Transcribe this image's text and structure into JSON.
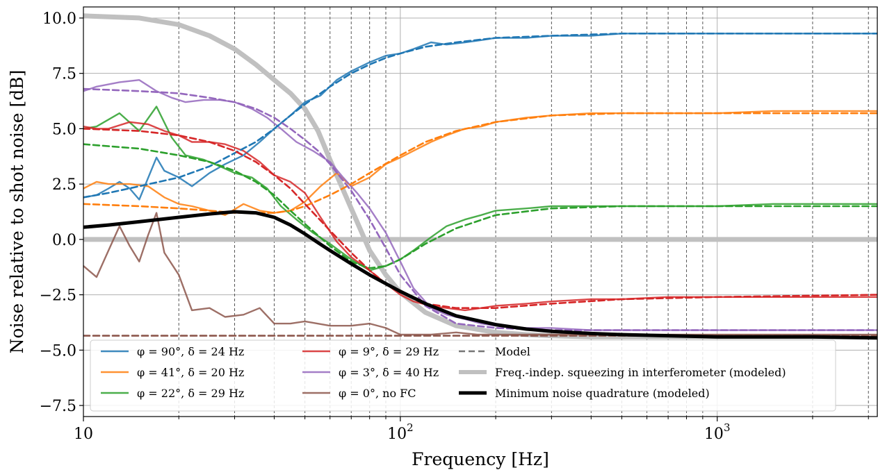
{
  "chart_data": {
    "type": "line",
    "xscale": "log",
    "xlabel": "Frequency [Hz]",
    "ylabel": "Noise relative to shot noise [dB]",
    "xlim": [
      10,
      3200
    ],
    "ylim": [
      -8.0,
      10.5
    ],
    "grid": true,
    "legend_position": "bottom-left",
    "x_ticks": [
      {
        "value": 10,
        "label": "10"
      },
      {
        "value": 100,
        "label": "10",
        "exp": "2"
      },
      {
        "value": 1000,
        "label": "10",
        "exp": "3"
      }
    ],
    "y_ticks": [
      {
        "value": 10.0,
        "label": "10.0"
      },
      {
        "value": 7.5,
        "label": "7.5"
      },
      {
        "value": 5.0,
        "label": "5.0"
      },
      {
        "value": 2.5,
        "label": "2.5"
      },
      {
        "value": 0.0,
        "label": "0.0"
      },
      {
        "value": -2.5,
        "label": "−2.5"
      },
      {
        "value": -5.0,
        "label": "−5.0"
      },
      {
        "value": -7.5,
        "label": "−7.5"
      }
    ],
    "vertical_dashed_lines_hz": [
      20,
      30,
      40,
      50,
      60,
      70,
      80,
      90,
      200,
      300,
      400,
      500,
      600,
      700,
      800,
      900,
      2000,
      3000
    ],
    "series": [
      {
        "name": "φ = 90°, δ = 24 Hz",
        "color": "#1f77b4",
        "style": "measured",
        "x": [
          10,
          11,
          12,
          13,
          14,
          15,
          17,
          18,
          20,
          22,
          25,
          28,
          32,
          36,
          40,
          45,
          50,
          56,
          63,
          70,
          80,
          90,
          100,
          110,
          125,
          140,
          160,
          180,
          200,
          250,
          300,
          400,
          500,
          700,
          1000,
          1500,
          2000,
          3000,
          3200
        ],
        "y": [
          1.9,
          2.0,
          2.3,
          2.6,
          2.3,
          1.8,
          3.7,
          3.1,
          2.8,
          2.4,
          3.0,
          3.4,
          3.8,
          4.4,
          5.0,
          5.6,
          6.2,
          6.5,
          7.2,
          7.6,
          8.0,
          8.3,
          8.4,
          8.6,
          8.9,
          8.8,
          8.9,
          9.0,
          9.1,
          9.1,
          9.2,
          9.2,
          9.3,
          9.3,
          9.3,
          9.3,
          9.3,
          9.3,
          9.3
        ]
      },
      {
        "name": "φ = 41°, δ = 20 Hz",
        "color": "#ff7f0e",
        "style": "measured",
        "x": [
          10,
          11,
          12,
          14,
          16,
          18,
          20,
          22,
          25,
          28,
          32,
          36,
          40,
          45,
          50,
          56,
          63,
          70,
          80,
          90,
          100,
          110,
          125,
          140,
          160,
          180,
          200,
          250,
          300,
          400,
          500,
          700,
          1000,
          1500,
          2000,
          3000,
          3200
        ],
        "y": [
          2.3,
          2.6,
          2.5,
          2.5,
          2.4,
          1.9,
          1.6,
          1.5,
          1.3,
          1.1,
          1.6,
          1.3,
          1.2,
          1.3,
          1.7,
          2.4,
          3.0,
          2.4,
          2.8,
          3.4,
          3.7,
          4.0,
          4.4,
          4.7,
          5.0,
          5.1,
          5.3,
          5.5,
          5.6,
          5.7,
          5.7,
          5.7,
          5.7,
          5.8,
          5.8,
          5.8,
          5.8
        ]
      },
      {
        "name": "φ = 22°, δ = 29 Hz",
        "color": "#2ca02c",
        "style": "measured",
        "x": [
          10,
          11,
          13,
          15,
          17,
          19,
          21,
          24,
          27,
          30,
          34,
          38,
          42,
          47,
          53,
          60,
          70,
          80,
          90,
          100,
          110,
          125,
          140,
          160,
          180,
          200,
          250,
          300,
          400,
          500,
          700,
          1000,
          1500,
          2000,
          3000,
          3200
        ],
        "y": [
          5.0,
          5.1,
          5.7,
          4.9,
          6.0,
          4.6,
          3.8,
          3.6,
          3.3,
          3.0,
          2.8,
          2.3,
          1.5,
          0.9,
          0.3,
          -0.2,
          -0.9,
          -1.4,
          -1.2,
          -0.9,
          -0.5,
          0.1,
          0.6,
          0.9,
          1.1,
          1.3,
          1.4,
          1.5,
          1.5,
          1.5,
          1.5,
          1.5,
          1.6,
          1.6,
          1.6,
          1.6
        ]
      },
      {
        "name": "φ = 9°, δ = 29 Hz",
        "color": "#d62728",
        "style": "measured",
        "x": [
          10,
          11,
          12,
          14,
          16,
          18,
          20,
          22,
          25,
          28,
          32,
          36,
          40,
          45,
          50,
          56,
          63,
          70,
          80,
          90,
          100,
          110,
          125,
          140,
          160,
          180,
          200,
          250,
          300,
          400,
          500,
          700,
          1000,
          1500,
          2000,
          3000,
          3200
        ],
        "y": [
          5.1,
          5.0,
          5.0,
          5.3,
          5.2,
          4.9,
          4.7,
          4.4,
          4.4,
          4.3,
          4.0,
          3.5,
          2.9,
          2.6,
          2.1,
          1.0,
          -0.1,
          -0.8,
          -1.4,
          -2.0,
          -2.5,
          -2.8,
          -3.0,
          -3.1,
          -3.2,
          -3.1,
          -3.0,
          -2.9,
          -2.8,
          -2.7,
          -2.7,
          -2.6,
          -2.6,
          -2.6,
          -2.6,
          -2.6,
          -2.6
        ]
      },
      {
        "name": "φ = 3°, δ = 40 Hz",
        "color": "#9467bd",
        "style": "measured",
        "x": [
          10,
          11,
          13,
          15,
          17,
          19,
          21,
          24,
          27,
          30,
          34,
          38,
          42,
          47,
          53,
          60,
          66,
          73,
          80,
          90,
          100,
          110,
          125,
          140,
          160,
          180,
          200,
          250,
          300,
          400,
          500,
          700,
          1000,
          1500,
          2000,
          3000,
          3200
        ],
        "y": [
          6.7,
          6.9,
          7.1,
          7.2,
          6.7,
          6.4,
          6.2,
          6.3,
          6.3,
          6.2,
          5.9,
          5.5,
          5.0,
          4.4,
          4.0,
          3.5,
          2.8,
          2.1,
          1.4,
          0.3,
          -1.0,
          -2.2,
          -3.1,
          -3.4,
          -3.6,
          -3.8,
          -3.9,
          -4.0,
          -4.0,
          -4.1,
          -4.1,
          -4.1,
          -4.1,
          -4.1,
          -4.1,
          -4.1,
          -4.1
        ]
      },
      {
        "name": "φ = 0°, no FC",
        "color": "#8c564b",
        "style": "measured",
        "x": [
          10,
          11,
          12,
          13,
          14,
          15,
          16,
          17,
          18,
          20,
          22,
          25,
          28,
          32,
          36,
          40,
          45,
          50,
          60,
          70,
          80,
          90,
          100,
          125,
          150,
          175,
          200,
          250,
          300,
          400,
          500,
          700,
          1000,
          1500,
          2000,
          3000,
          3200
        ],
        "y": [
          -1.2,
          -1.7,
          -0.5,
          0.6,
          -0.3,
          -1.0,
          0.2,
          1.2,
          -0.6,
          -1.6,
          -3.2,
          -3.1,
          -3.5,
          -3.4,
          -3.1,
          -3.8,
          -3.8,
          -3.7,
          -3.9,
          -3.9,
          -3.8,
          -4.0,
          -4.3,
          -4.3,
          -4.2,
          -4.3,
          -4.3,
          -4.3,
          -4.3,
          -4.3,
          -4.3,
          -4.3,
          -4.3,
          -4.3,
          -4.3,
          -4.3,
          -4.3
        ]
      },
      {
        "name": "",
        "color": "#1f77b4",
        "style": "model",
        "x": [
          10,
          12,
          15,
          20,
          25,
          30,
          35,
          40,
          45,
          50,
          60,
          70,
          80,
          90,
          100,
          120,
          150,
          200,
          300,
          500,
          1000,
          3200
        ],
        "y": [
          1.9,
          2.1,
          2.4,
          2.8,
          3.3,
          3.9,
          4.4,
          5.0,
          5.6,
          6.1,
          6.9,
          7.5,
          7.9,
          8.2,
          8.4,
          8.7,
          8.9,
          9.1,
          9.2,
          9.3,
          9.3,
          9.3
        ]
      },
      {
        "name": "",
        "color": "#ff7f0e",
        "style": "model",
        "x": [
          10,
          15,
          20,
          25,
          30,
          35,
          40,
          45,
          50,
          60,
          70,
          80,
          100,
          120,
          150,
          200,
          300,
          500,
          1000,
          3200
        ],
        "y": [
          1.6,
          1.5,
          1.4,
          1.3,
          1.2,
          1.2,
          1.2,
          1.3,
          1.5,
          2.0,
          2.5,
          3.0,
          3.8,
          4.4,
          4.9,
          5.3,
          5.6,
          5.7,
          5.7,
          5.7
        ]
      },
      {
        "name": "",
        "color": "#2ca02c",
        "style": "model",
        "x": [
          10,
          15,
          20,
          25,
          30,
          35,
          40,
          45,
          50,
          60,
          70,
          80,
          90,
          100,
          120,
          150,
          200,
          300,
          500,
          1000,
          3200
        ],
        "y": [
          4.3,
          4.1,
          3.8,
          3.5,
          3.1,
          2.6,
          2.0,
          1.3,
          0.7,
          -0.3,
          -1.0,
          -1.3,
          -1.2,
          -0.9,
          -0.2,
          0.5,
          1.1,
          1.4,
          1.5,
          1.5,
          1.5
        ]
      },
      {
        "name": "",
        "color": "#d62728",
        "style": "model",
        "x": [
          10,
          15,
          20,
          25,
          30,
          35,
          40,
          45,
          50,
          60,
          70,
          80,
          90,
          100,
          120,
          150,
          200,
          300,
          500,
          1000,
          3200
        ],
        "y": [
          5.0,
          4.9,
          4.7,
          4.4,
          4.0,
          3.5,
          2.9,
          2.3,
          1.6,
          0.4,
          -0.6,
          -1.4,
          -2.0,
          -2.4,
          -2.9,
          -3.1,
          -3.1,
          -2.9,
          -2.7,
          -2.6,
          -2.5
        ]
      },
      {
        "name": "",
        "color": "#9467bd",
        "style": "model",
        "x": [
          10,
          15,
          20,
          25,
          30,
          35,
          40,
          45,
          50,
          55,
          60,
          70,
          80,
          90,
          100,
          120,
          150,
          200,
          300,
          500,
          1000,
          3200
        ],
        "y": [
          6.8,
          6.7,
          6.6,
          6.4,
          6.2,
          5.9,
          5.5,
          5.0,
          4.5,
          4.0,
          3.4,
          2.2,
          0.9,
          -0.4,
          -1.6,
          -3.0,
          -3.8,
          -4.0,
          -4.1,
          -4.1,
          -4.1,
          -4.1
        ]
      },
      {
        "name": "",
        "color": "#8c564b",
        "style": "model",
        "x": [
          10,
          3200
        ],
        "y": [
          -4.35,
          -4.35
        ]
      },
      {
        "name": "Freq.-indep. squeezing in interferometer (modeled)",
        "color": "#c0c0c0",
        "style": "freq-indep",
        "x": [
          10,
          15,
          20,
          25,
          30,
          35,
          40,
          45,
          50,
          55,
          60,
          70,
          80,
          90,
          100,
          120,
          150,
          200,
          250,
          300,
          400,
          500,
          1000,
          3200
        ],
        "y": [
          10.1,
          10.0,
          9.7,
          9.2,
          8.6,
          7.9,
          7.2,
          6.6,
          5.9,
          4.9,
          3.6,
          1.4,
          -0.5,
          -1.6,
          -2.4,
          -3.3,
          -3.9,
          -4.2,
          -4.3,
          -4.35,
          -4.4,
          -4.4,
          -4.4,
          -4.4
        ]
      },
      {
        "name": "Minimum noise quadrature (modeled)",
        "color": "#000000",
        "style": "min-quadrature",
        "x": [
          10,
          12,
          15,
          20,
          25,
          30,
          35,
          40,
          45,
          50,
          55,
          60,
          70,
          80,
          90,
          100,
          120,
          150,
          200,
          250,
          300,
          400,
          500,
          700,
          1000,
          1500,
          2000,
          3200
        ],
        "y": [
          0.55,
          0.65,
          0.8,
          1.0,
          1.15,
          1.25,
          1.2,
          1.0,
          0.65,
          0.25,
          -0.15,
          -0.5,
          -1.1,
          -1.6,
          -2.0,
          -2.35,
          -2.9,
          -3.45,
          -3.85,
          -4.05,
          -4.15,
          -4.25,
          -4.3,
          -4.35,
          -4.4,
          -4.4,
          -4.4,
          -4.45
        ]
      }
    ],
    "legend": [
      {
        "label": "φ = 90°, δ = 24 Hz",
        "color": "#1f77b4",
        "style": "measured"
      },
      {
        "label": "φ = 41°, δ = 20 Hz",
        "color": "#ff7f0e",
        "style": "measured"
      },
      {
        "label": "φ = 22°, δ = 29 Hz",
        "color": "#2ca02c",
        "style": "measured"
      },
      {
        "label": "φ = 9°, δ = 29 Hz",
        "color": "#d62728",
        "style": "measured"
      },
      {
        "label": "φ = 3°, δ = 40 Hz",
        "color": "#9467bd",
        "style": "measured"
      },
      {
        "label": "φ = 0°, no FC",
        "color": "#8c564b",
        "style": "measured"
      },
      {
        "label": "Model",
        "color": "#777777",
        "style": "model"
      },
      {
        "label": "Freq.-indep. squeezing in interferometer (modeled)",
        "color": "#c0c0c0",
        "style": "freq-indep"
      },
      {
        "label": "Minimum noise quadrature (modeled)",
        "color": "#000000",
        "style": "min-quadrature"
      }
    ]
  }
}
